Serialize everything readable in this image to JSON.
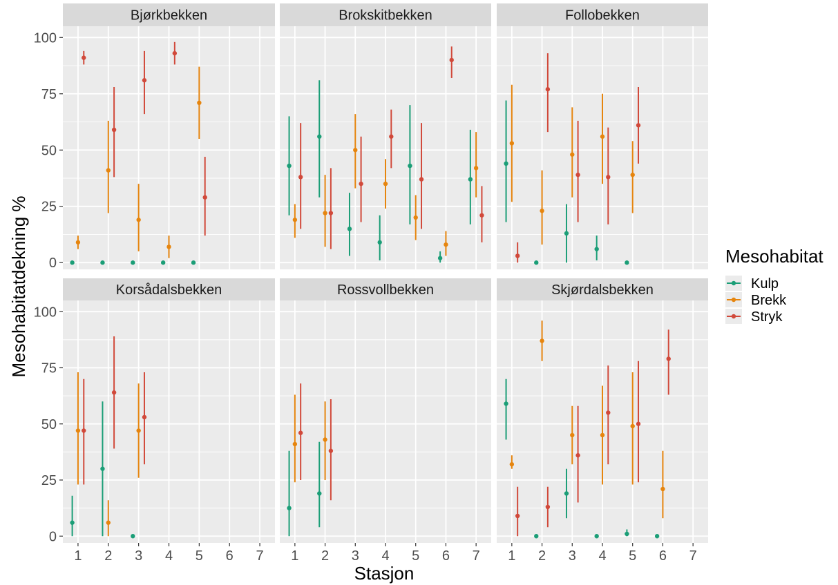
{
  "colors": {
    "panel_bg": "#EBEBEB",
    "strip_bg": "#D9D9D9",
    "grid": "#FFFFFF",
    "tick": "#333333"
  },
  "chart_data": {
    "type": "scatter",
    "subtype": "point-range facet grid",
    "xlabel": "Stasjon",
    "ylabel": "Mesohabitatdekning %",
    "x_ticks": [
      1,
      2,
      3,
      4,
      5,
      6,
      7
    ],
    "y_ticks": [
      0,
      25,
      50,
      75,
      100
    ],
    "xlim": [
      0.5,
      7.5
    ],
    "ylim": [
      -3,
      105
    ],
    "grid": true,
    "dodge": 0.19,
    "legend": {
      "title": "Mesohabitat",
      "position": "right",
      "items": [
        {
          "name": "Kulp",
          "color": "#1B9E77"
        },
        {
          "name": "Brekk",
          "color": "#E6850E"
        },
        {
          "name": "Stryk",
          "color": "#D1493A"
        }
      ]
    },
    "panels": [
      {
        "title": "Bjørkbekken",
        "series": [
          {
            "name": "Kulp",
            "points": [
              {
                "x": 1,
                "y": 0,
                "lo": 0,
                "hi": 0
              },
              {
                "x": 2,
                "y": 0,
                "lo": 0,
                "hi": 0
              },
              {
                "x": 3,
                "y": 0,
                "lo": 0,
                "hi": 0
              },
              {
                "x": 4,
                "y": 0,
                "lo": 0,
                "hi": 0
              },
              {
                "x": 5,
                "y": 0,
                "lo": 0,
                "hi": 0
              }
            ]
          },
          {
            "name": "Brekk",
            "points": [
              {
                "x": 1,
                "y": 9,
                "lo": 6,
                "hi": 12
              },
              {
                "x": 2,
                "y": 41,
                "lo": 22,
                "hi": 63
              },
              {
                "x": 3,
                "y": 19,
                "lo": 5,
                "hi": 35
              },
              {
                "x": 4,
                "y": 7,
                "lo": 2,
                "hi": 12
              },
              {
                "x": 5,
                "y": 71,
                "lo": 55,
                "hi": 87
              }
            ]
          },
          {
            "name": "Stryk",
            "points": [
              {
                "x": 1,
                "y": 91,
                "lo": 88,
                "hi": 94
              },
              {
                "x": 2,
                "y": 59,
                "lo": 38,
                "hi": 78
              },
              {
                "x": 3,
                "y": 81,
                "lo": 66,
                "hi": 94
              },
              {
                "x": 4,
                "y": 93,
                "lo": 88,
                "hi": 98
              },
              {
                "x": 5,
                "y": 29,
                "lo": 12,
                "hi": 47
              }
            ]
          }
        ]
      },
      {
        "title": "Brokskitbekken",
        "series": [
          {
            "name": "Kulp",
            "points": [
              {
                "x": 1,
                "y": 43,
                "lo": 21,
                "hi": 65
              },
              {
                "x": 2,
                "y": 56,
                "lo": 29,
                "hi": 81
              },
              {
                "x": 3,
                "y": 15,
                "lo": 3,
                "hi": 31
              },
              {
                "x": 4,
                "y": 9,
                "lo": 1,
                "hi": 21
              },
              {
                "x": 5,
                "y": 43,
                "lo": 17,
                "hi": 70
              },
              {
                "x": 6,
                "y": 2,
                "lo": 0,
                "hi": 5
              },
              {
                "x": 7,
                "y": 37,
                "lo": 17,
                "hi": 59
              }
            ]
          },
          {
            "name": "Brekk",
            "points": [
              {
                "x": 1,
                "y": 19,
                "lo": 11,
                "hi": 26
              },
              {
                "x": 2,
                "y": 22,
                "lo": 7,
                "hi": 39
              },
              {
                "x": 3,
                "y": 50,
                "lo": 33,
                "hi": 66
              },
              {
                "x": 4,
                "y": 35,
                "lo": 24,
                "hi": 46
              },
              {
                "x": 5,
                "y": 20,
                "lo": 10,
                "hi": 30
              },
              {
                "x": 6,
                "y": 8,
                "lo": 3,
                "hi": 14
              },
              {
                "x": 7,
                "y": 42,
                "lo": 29,
                "hi": 58
              }
            ]
          },
          {
            "name": "Stryk",
            "points": [
              {
                "x": 1,
                "y": 38,
                "lo": 15,
                "hi": 62
              },
              {
                "x": 2,
                "y": 22,
                "lo": 6,
                "hi": 42
              },
              {
                "x": 3,
                "y": 35,
                "lo": 18,
                "hi": 56
              },
              {
                "x": 4,
                "y": 56,
                "lo": 42,
                "hi": 68
              },
              {
                "x": 5,
                "y": 37,
                "lo": 15,
                "hi": 62
              },
              {
                "x": 6,
                "y": 90,
                "lo": 82,
                "hi": 96
              },
              {
                "x": 7,
                "y": 21,
                "lo": 9,
                "hi": 34
              }
            ]
          }
        ]
      },
      {
        "title": "Follobekken",
        "series": [
          {
            "name": "Kulp",
            "points": [
              {
                "x": 1,
                "y": 44,
                "lo": 18,
                "hi": 72
              },
              {
                "x": 2,
                "y": 0,
                "lo": 0,
                "hi": 0
              },
              {
                "x": 3,
                "y": 13,
                "lo": 0,
                "hi": 26
              },
              {
                "x": 4,
                "y": 6,
                "lo": 1,
                "hi": 12
              },
              {
                "x": 5,
                "y": 0,
                "lo": 0,
                "hi": 0
              }
            ]
          },
          {
            "name": "Brekk",
            "points": [
              {
                "x": 1,
                "y": 53,
                "lo": 27,
                "hi": 79
              },
              {
                "x": 2,
                "y": 23,
                "lo": 8,
                "hi": 41
              },
              {
                "x": 3,
                "y": 48,
                "lo": 29,
                "hi": 69
              },
              {
                "x": 4,
                "y": 56,
                "lo": 35,
                "hi": 75
              },
              {
                "x": 5,
                "y": 39,
                "lo": 22,
                "hi": 54
              }
            ]
          },
          {
            "name": "Stryk",
            "points": [
              {
                "x": 1,
                "y": 3,
                "lo": 0,
                "hi": 9
              },
              {
                "x": 2,
                "y": 77,
                "lo": 58,
                "hi": 93
              },
              {
                "x": 3,
                "y": 39,
                "lo": 18,
                "hi": 63
              },
              {
                "x": 4,
                "y": 38,
                "lo": 17,
                "hi": 60
              },
              {
                "x": 5,
                "y": 61,
                "lo": 44,
                "hi": 78
              }
            ]
          }
        ]
      },
      {
        "title": "Korsådalsbekken",
        "series": [
          {
            "name": "Kulp",
            "points": [
              {
                "x": 1,
                "y": 6,
                "lo": 0,
                "hi": 18
              },
              {
                "x": 2,
                "y": 30,
                "lo": 0,
                "hi": 60
              },
              {
                "x": 3,
                "y": 0,
                "lo": 0,
                "hi": 0
              }
            ]
          },
          {
            "name": "Brekk",
            "points": [
              {
                "x": 1,
                "y": 47,
                "lo": 23,
                "hi": 73
              },
              {
                "x": 2,
                "y": 6,
                "lo": 0,
                "hi": 16
              },
              {
                "x": 3,
                "y": 47,
                "lo": 26,
                "hi": 68
              }
            ]
          },
          {
            "name": "Stryk",
            "points": [
              {
                "x": 1,
                "y": 47,
                "lo": 23,
                "hi": 70
              },
              {
                "x": 2,
                "y": 64,
                "lo": 39,
                "hi": 89
              },
              {
                "x": 3,
                "y": 53,
                "lo": 32,
                "hi": 73
              }
            ]
          }
        ]
      },
      {
        "title": "Rossvollbekken",
        "series": [
          {
            "name": "Kulp",
            "points": [
              {
                "x": 1,
                "y": 12.5,
                "lo": 0,
                "hi": 38
              },
              {
                "x": 2,
                "y": 19,
                "lo": 4,
                "hi": 42
              }
            ]
          },
          {
            "name": "Brekk",
            "points": [
              {
                "x": 1,
                "y": 41,
                "lo": 24,
                "hi": 63
              },
              {
                "x": 2,
                "y": 43,
                "lo": 25,
                "hi": 60
              }
            ]
          },
          {
            "name": "Stryk",
            "points": [
              {
                "x": 1,
                "y": 46,
                "lo": 25,
                "hi": 68
              },
              {
                "x": 2,
                "y": 38,
                "lo": 16,
                "hi": 61
              }
            ]
          }
        ]
      },
      {
        "title": "Skjørdalsbekken",
        "series": [
          {
            "name": "Kulp",
            "points": [
              {
                "x": 1,
                "y": 59,
                "lo": 43,
                "hi": 70
              },
              {
                "x": 2,
                "y": 0,
                "lo": 0,
                "hi": 0
              },
              {
                "x": 3,
                "y": 19,
                "lo": 8,
                "hi": 30
              },
              {
                "x": 4,
                "y": 0,
                "lo": 0,
                "hi": 0
              },
              {
                "x": 5,
                "y": 1,
                "lo": 0,
                "hi": 3
              },
              {
                "x": 6,
                "y": 0,
                "lo": 0,
                "hi": 0
              }
            ]
          },
          {
            "name": "Brekk",
            "points": [
              {
                "x": 1,
                "y": 32,
                "lo": 30,
                "hi": 36
              },
              {
                "x": 2,
                "y": 87,
                "lo": 78,
                "hi": 96
              },
              {
                "x": 3,
                "y": 45,
                "lo": 32,
                "hi": 58
              },
              {
                "x": 4,
                "y": 45,
                "lo": 23,
                "hi": 67
              },
              {
                "x": 5,
                "y": 49,
                "lo": 23,
                "hi": 73
              },
              {
                "x": 6,
                "y": 21,
                "lo": 8,
                "hi": 38
              }
            ]
          },
          {
            "name": "Stryk",
            "points": [
              {
                "x": 1,
                "y": 9,
                "lo": 0,
                "hi": 22
              },
              {
                "x": 2,
                "y": 13,
                "lo": 4,
                "hi": 22
              },
              {
                "x": 3,
                "y": 36,
                "lo": 15,
                "hi": 58
              },
              {
                "x": 4,
                "y": 55,
                "lo": 32,
                "hi": 76
              },
              {
                "x": 5,
                "y": 50,
                "lo": 24,
                "hi": 78
              },
              {
                "x": 6,
                "y": 79,
                "lo": 63,
                "hi": 92
              }
            ]
          }
        ]
      }
    ]
  }
}
